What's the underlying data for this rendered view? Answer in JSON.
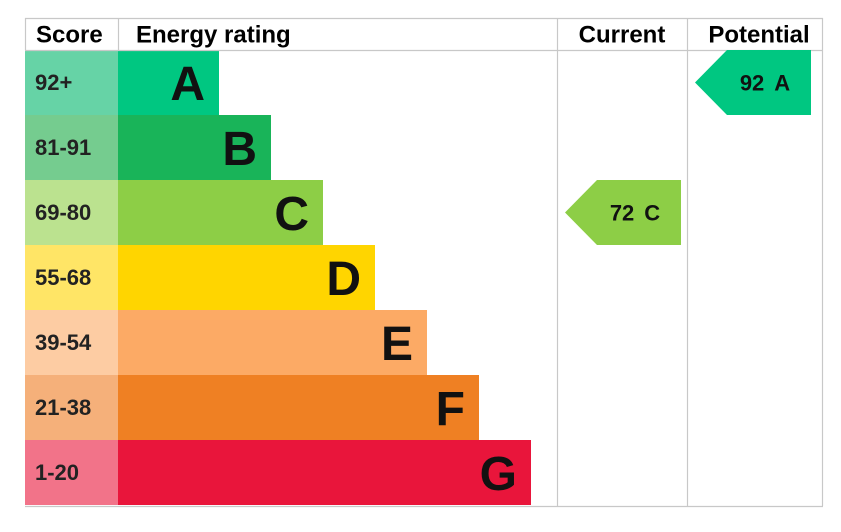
{
  "header": {
    "score": "Score",
    "energy_rating": "Energy rating",
    "current": "Current",
    "potential": "Potential"
  },
  "bands": [
    {
      "score": "92+",
      "rating": "A",
      "color": "#00c781",
      "score_color": "#66d3a6"
    },
    {
      "score": "81-91",
      "rating": "B",
      "color": "#19b459",
      "score_color": "#75cc8f"
    },
    {
      "score": "69-80",
      "rating": "C",
      "color": "#8dce46",
      "score_color": "#bbe28f"
    },
    {
      "score": "55-68",
      "rating": "D",
      "color": "#ffd500",
      "score_color": "#ffe566"
    },
    {
      "score": "39-54",
      "rating": "E",
      "color": "#fcaa65",
      "score_color": "#fdcca3"
    },
    {
      "score": "21-38",
      "rating": "F",
      "color": "#ef8023",
      "score_color": "#f5b07a"
    },
    {
      "score": "1-20",
      "rating": "G",
      "color": "#e9153b",
      "score_color": "#f27389"
    }
  ],
  "current": {
    "value": 72,
    "rating": "C"
  },
  "potential": {
    "value": 92,
    "rating": "A"
  }
}
